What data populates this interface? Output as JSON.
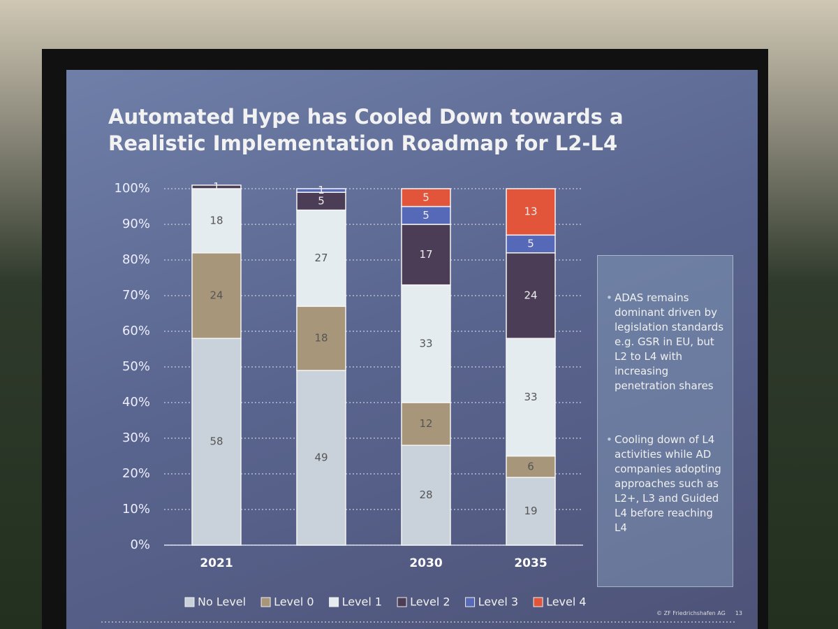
{
  "chart_data": {
    "type": "stacked-bar",
    "title": "Automated Hype has Cooled Down towards a Realistic Implementation Roadmap for L2-L4",
    "categories": [
      "2021",
      null,
      "2030",
      "2035"
    ],
    "series": [
      {
        "name": "No Level",
        "color": "#c9d2da",
        "values": [
          58,
          49,
          28,
          19
        ]
      },
      {
        "name": "Level 0",
        "color": "#a8967a",
        "values": [
          24,
          18,
          12,
          6
        ]
      },
      {
        "name": "Level 1",
        "color": "#e4ecf0",
        "values": [
          18,
          27,
          33,
          33
        ]
      },
      {
        "name": "Level 2",
        "color": "#4b3d55",
        "values": [
          1,
          5,
          17,
          24
        ]
      },
      {
        "name": "Level 3",
        "color": "#5668b8",
        "values": [
          null,
          1,
          5,
          5
        ]
      },
      {
        "name": "Level 4",
        "color": "#e2553a",
        "values": [
          null,
          null,
          5,
          13
        ]
      }
    ],
    "ylim": [
      0,
      100
    ],
    "yticks": [
      {
        "value": 0,
        "label": "0%"
      },
      {
        "value": 10,
        "label": "10%"
      },
      {
        "value": 20,
        "label": "20%"
      },
      {
        "value": 30,
        "label": "30%"
      },
      {
        "value": 40,
        "label": "40%"
      },
      {
        "value": 50,
        "label": "50%"
      },
      {
        "value": 60,
        "label": "60%"
      },
      {
        "value": 70,
        "label": "70%"
      },
      {
        "value": 80,
        "label": "80%"
      },
      {
        "value": 90,
        "label": "90%"
      },
      {
        "value": 100,
        "label": "100%"
      }
    ],
    "grid": true,
    "notes": [
      "ADAS remains dominant driven by legislation standards e.g. GSR in EU, but L2 to L4 with increasing penetration shares",
      "Cooling down of L4 activities while AD companies adopting approaches such as L2+, L3 and Guided L4 before reaching L4"
    ],
    "footer": [
      "© ZF Friedrichshafen AG",
      "13"
    ]
  }
}
